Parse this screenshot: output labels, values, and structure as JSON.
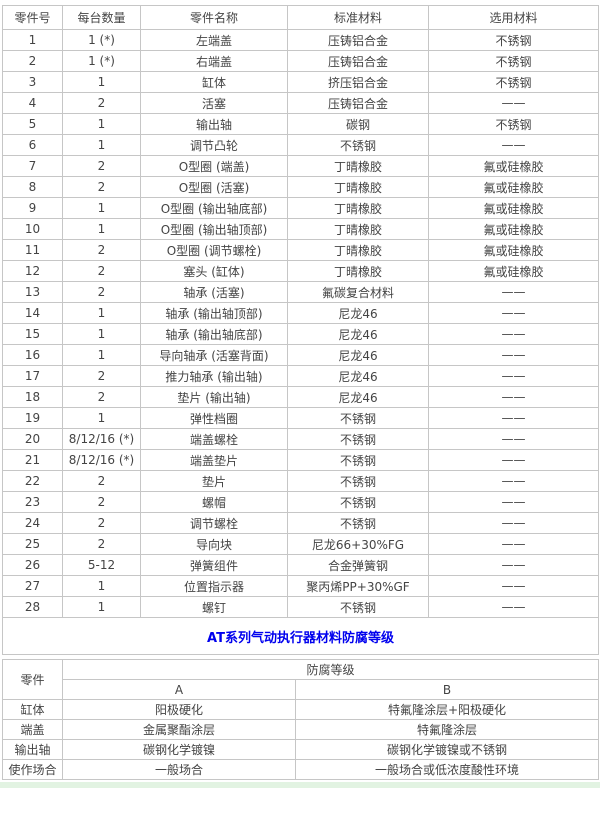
{
  "colors": {
    "accent_blue": "#0000ee",
    "grid_border": "#c6c6c6",
    "footer_strip_green": "#e2f3e2",
    "text_gray": "#444444"
  },
  "banner": {
    "title": "AT系列气动执行器材料防腐等级"
  },
  "parts_table": {
    "headers": [
      "零件号",
      "每台数量",
      "零件名称",
      "标准材料",
      "选用材料"
    ],
    "rows": [
      [
        "1",
        "1 (*)",
        "左端盖",
        "压铸铝合金",
        "不锈钢"
      ],
      [
        "2",
        "1 (*)",
        "右端盖",
        "压铸铝合金",
        "不锈钢"
      ],
      [
        "3",
        "1",
        "缸体",
        "挤压铝合金",
        "不锈钢"
      ],
      [
        "4",
        "2",
        "活塞",
        "压铸铝合金",
        "——"
      ],
      [
        "5",
        "1",
        "输出轴",
        "碳钢",
        "不锈钢"
      ],
      [
        "6",
        "1",
        "调节凸轮",
        "不锈钢",
        "——"
      ],
      [
        "7",
        "2",
        "O型圈 (端盖)",
        "丁晴橡胶",
        "氟或硅橡胶"
      ],
      [
        "8",
        "2",
        "O型圈 (活塞)",
        "丁晴橡胶",
        "氟或硅橡胶"
      ],
      [
        "9",
        "1",
        "O型圈 (输出轴底部)",
        "丁晴橡胶",
        "氟或硅橡胶"
      ],
      [
        "10",
        "1",
        "O型圈 (输出轴顶部)",
        "丁晴橡胶",
        "氟或硅橡胶"
      ],
      [
        "11",
        "2",
        "O型圈 (调节螺栓)",
        "丁晴橡胶",
        "氟或硅橡胶"
      ],
      [
        "12",
        "2",
        "塞头 (缸体)",
        "丁晴橡胶",
        "氟或硅橡胶"
      ],
      [
        "13",
        "2",
        "轴承 (活塞)",
        "氟碳复合材料",
        "——"
      ],
      [
        "14",
        "1",
        "轴承 (输出轴顶部)",
        "尼龙46",
        "——"
      ],
      [
        "15",
        "1",
        "轴承 (输出轴底部)",
        "尼龙46",
        "——"
      ],
      [
        "16",
        "1",
        "导向轴承 (活塞背面)",
        "尼龙46",
        "——"
      ],
      [
        "17",
        "2",
        "推力轴承 (输出轴)",
        "尼龙46",
        "——"
      ],
      [
        "18",
        "2",
        "垫片 (输出轴)",
        "尼龙46",
        "——"
      ],
      [
        "19",
        "1",
        "弹性档圈",
        "不锈钢",
        "——"
      ],
      [
        "20",
        "8/12/16 (*)",
        "端盖螺栓",
        "不锈钢",
        "——"
      ],
      [
        "21",
        "8/12/16 (*)",
        "端盖垫片",
        "不锈钢",
        "——"
      ],
      [
        "22",
        "2",
        "垫片",
        "不锈钢",
        "——"
      ],
      [
        "23",
        "2",
        "螺帽",
        "不锈钢",
        "——"
      ],
      [
        "24",
        "2",
        "调节螺栓",
        "不锈钢",
        "——"
      ],
      [
        "25",
        "2",
        "导向块",
        "尼龙66+30%FG",
        "——"
      ],
      [
        "26",
        "5-12",
        "弹簧组件",
        "合金弹簧钢",
        "——"
      ],
      [
        "27",
        "1",
        "位置指示器",
        "聚丙烯PP+30%GF",
        "——"
      ],
      [
        "28",
        "1",
        "螺钉",
        "不锈钢",
        "——"
      ]
    ]
  },
  "corrosion_table": {
    "part_header": "零件",
    "grade_header": "防腐等级",
    "grade_a_label": "A",
    "grade_b_label": "B",
    "rows": [
      [
        "缸体",
        "阳极硬化",
        "特氟隆涂层+阳极硬化"
      ],
      [
        "端盖",
        "金属聚酯涂层",
        "特氟隆涂层"
      ],
      [
        "输出轴",
        "碳钢化学镀镍",
        "碳钢化学镀镍或不锈钢"
      ],
      [
        "使作场合",
        "一般场合",
        "一般场合或低浓度酸性环境"
      ]
    ]
  }
}
